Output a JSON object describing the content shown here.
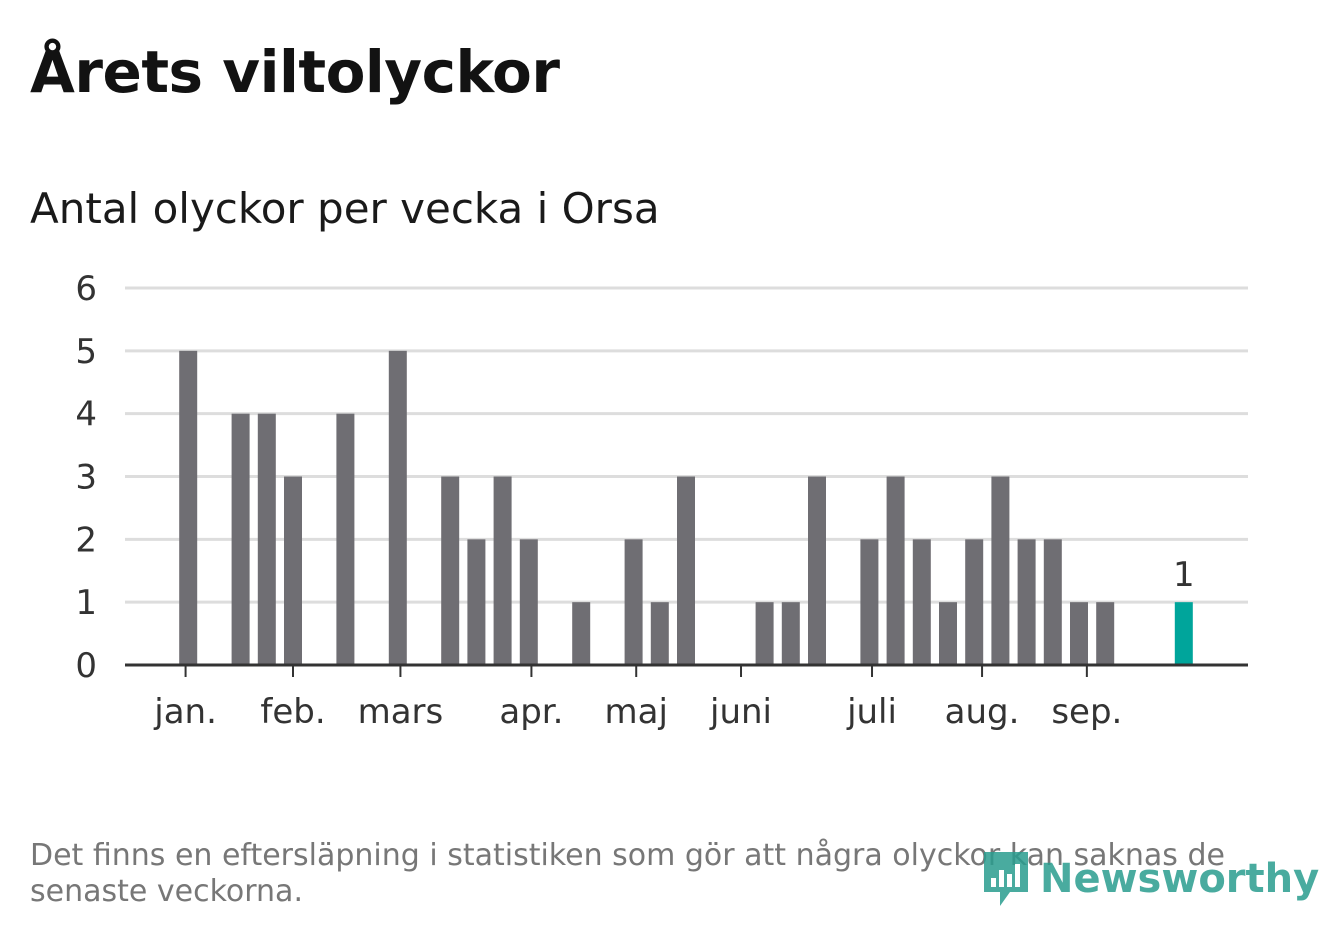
{
  "header": {
    "title": "Årets viltolyckor",
    "subtitle": "Antal olyckor per vecka i Orsa"
  },
  "footnote": "Det finns en eftersläpning i statistiken som gör att några olyckor kan saknas de senaste veckorna.",
  "logo": {
    "text": "Newsworthy",
    "icon": "bar-chart-pin-icon"
  },
  "colors": {
    "bar": "#6f6e73",
    "highlight": "#00a59b",
    "grid": "#dddddd",
    "axis": "#333333"
  },
  "chart_data": {
    "type": "bar",
    "title": "Antal olyckor per vecka i Orsa",
    "xlabel": "",
    "ylabel": "",
    "ylim": [
      0,
      6
    ],
    "yticks": [
      0,
      1,
      2,
      3,
      4,
      5,
      6
    ],
    "grid": true,
    "weeks": [
      1,
      2,
      3,
      4,
      5,
      6,
      7,
      8,
      9,
      10,
      11,
      12,
      13,
      14,
      15,
      16,
      17,
      18,
      19,
      20,
      21,
      22,
      23,
      24,
      25,
      26,
      27,
      28,
      29,
      30,
      31,
      32,
      33,
      34,
      35,
      36,
      37,
      38,
      39,
      40
    ],
    "values": [
      0,
      5,
      0,
      4,
      4,
      3,
      0,
      4,
      0,
      5,
      0,
      3,
      2,
      3,
      2,
      0,
      1,
      0,
      2,
      1,
      3,
      0,
      0,
      1,
      1,
      3,
      0,
      2,
      3,
      2,
      1,
      2,
      3,
      2,
      2,
      1,
      1,
      0,
      0,
      1
    ],
    "highlight_week": 40,
    "highlight_label": "1",
    "month_ticks": [
      {
        "label": "jan.",
        "week": 1.9
      },
      {
        "label": "feb.",
        "week": 6
      },
      {
        "label": "mars",
        "week": 10.1
      },
      {
        "label": "apr.",
        "week": 15.1
      },
      {
        "label": "maj",
        "week": 19.1
      },
      {
        "label": "juni",
        "week": 23.1
      },
      {
        "label": "juli",
        "week": 28.1
      },
      {
        "label": "aug.",
        "week": 32.3
      },
      {
        "label": "sep.",
        "week": 36.3
      }
    ]
  }
}
